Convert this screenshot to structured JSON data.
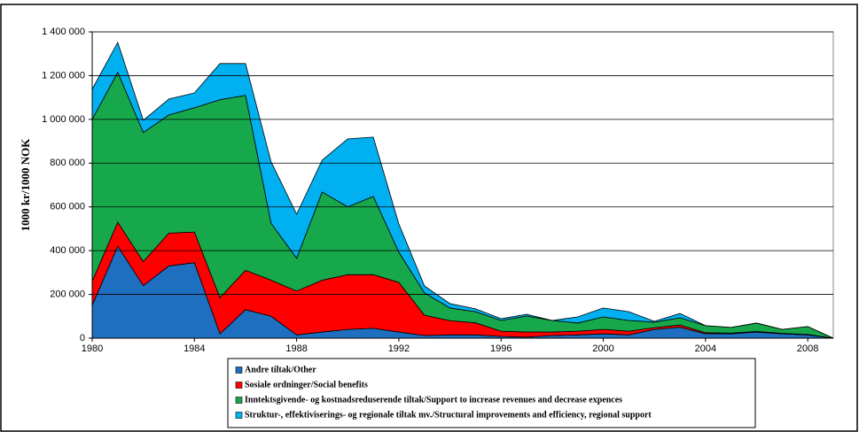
{
  "chart_data": {
    "type": "stacked-area",
    "y_label": "1000 kr/1000 NOK",
    "x": [
      1980,
      1981,
      1982,
      1983,
      1984,
      1985,
      1986,
      1987,
      1988,
      1989,
      1990,
      1991,
      1992,
      1993,
      1994,
      1995,
      1996,
      1997,
      1998,
      1999,
      2000,
      2001,
      2002,
      2003,
      2004,
      2005,
      2006,
      2007,
      2008,
      2009
    ],
    "xlim": [
      1980,
      2009
    ],
    "xticks": [
      1980,
      1984,
      1988,
      1992,
      1996,
      2000,
      2004,
      2008
    ],
    "ylim": [
      0,
      1400000
    ],
    "yticks": [
      0,
      {
        "value": 200000,
        "label": "200 000"
      },
      {
        "value": 400000,
        "label": "400 000"
      },
      {
        "value": 600000,
        "label": "600 000"
      },
      {
        "value": 800000,
        "label": "800 000"
      },
      {
        "value": 1000000,
        "label": "1 000 000"
      },
      {
        "value": 1200000,
        "label": "1 200 000"
      },
      {
        "value": 1400000,
        "label": "1 400 000"
      }
    ],
    "grid": true,
    "series": [
      {
        "name": "Andre tiltak/Other",
        "color": "#1f6fc0",
        "values": [
          150000,
          420000,
          240000,
          330000,
          345000,
          20000,
          130000,
          100000,
          15000,
          28000,
          40000,
          45000,
          28000,
          12000,
          15000,
          15000,
          8000,
          5000,
          12000,
          15000,
          20000,
          15000,
          40000,
          50000,
          20000,
          20000,
          28000,
          20000,
          15000,
          0
        ]
      },
      {
        "name": "Sosiale ordninger/Social benefits",
        "color": "#ff0000",
        "values": [
          110000,
          110000,
          110000,
          150000,
          140000,
          165000,
          180000,
          165000,
          200000,
          237000,
          250000,
          245000,
          227000,
          93000,
          65000,
          55000,
          24000,
          23000,
          16000,
          17000,
          20000,
          17000,
          8000,
          10000,
          5000,
          3000,
          3000,
          2000,
          2000,
          0
        ]
      },
      {
        "name": "Inntektsgivende- og kostnadsreduserende tiltak/Support to increase revenues and decrease expences",
        "color": "#17a84b",
        "values": [
          740000,
          685000,
          590000,
          540000,
          568000,
          905000,
          800000,
          260000,
          150000,
          403000,
          310000,
          358000,
          138000,
          102000,
          58000,
          51000,
          49000,
          73000,
          53000,
          37000,
          57000,
          49000,
          25000,
          33000,
          32000,
          26000,
          38000,
          18000,
          36000,
          0
        ]
      },
      {
        "name": "Struktur-, effektiviserings- og regionale tiltak mv./Structural improvements and efficiency, regional support",
        "color": "#00b0f0",
        "values": [
          138000,
          137000,
          56000,
          73000,
          68000,
          165000,
          145000,
          281000,
          202000,
          146000,
          311000,
          271000,
          129000,
          32000,
          20000,
          13000,
          8000,
          8000,
          0,
          28000,
          41000,
          40000,
          4000,
          20000,
          0,
          0,
          0,
          0,
          0,
          0
        ]
      }
    ]
  }
}
